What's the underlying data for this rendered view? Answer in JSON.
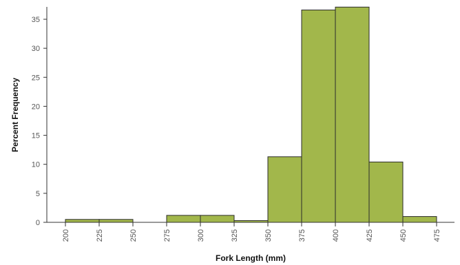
{
  "chart_data": {
    "type": "bar",
    "subtype": "histogram",
    "title": "",
    "xlabel": "Fork Length (mm)",
    "ylabel": "Percent Frequency",
    "xlim": [
      200,
      475
    ],
    "ylim": [
      0,
      37
    ],
    "x_ticks": [
      "200",
      "225",
      "250",
      "275",
      "300",
      "325",
      "350",
      "375",
      "400",
      "425",
      "450",
      "475"
    ],
    "y_ticks": [
      "0",
      "5",
      "10",
      "15",
      "20",
      "25",
      "30",
      "35"
    ],
    "bins": [
      {
        "start": 200,
        "end": 225,
        "value": 0.5
      },
      {
        "start": 225,
        "end": 250,
        "value": 0.5
      },
      {
        "start": 250,
        "end": 275,
        "value": 0
      },
      {
        "start": 275,
        "end": 300,
        "value": 1.2
      },
      {
        "start": 300,
        "end": 325,
        "value": 1.2
      },
      {
        "start": 325,
        "end": 350,
        "value": 0.3
      },
      {
        "start": 350,
        "end": 375,
        "value": 11.3
      },
      {
        "start": 375,
        "end": 400,
        "value": 36.6
      },
      {
        "start": 400,
        "end": 425,
        "value": 37.1
      },
      {
        "start": 425,
        "end": 450,
        "value": 10.4
      },
      {
        "start": 450,
        "end": 475,
        "value": 1.0
      }
    ],
    "grid": false,
    "bar_color": "#a2b74b",
    "bar_edge_color": "#2b2b2b"
  }
}
